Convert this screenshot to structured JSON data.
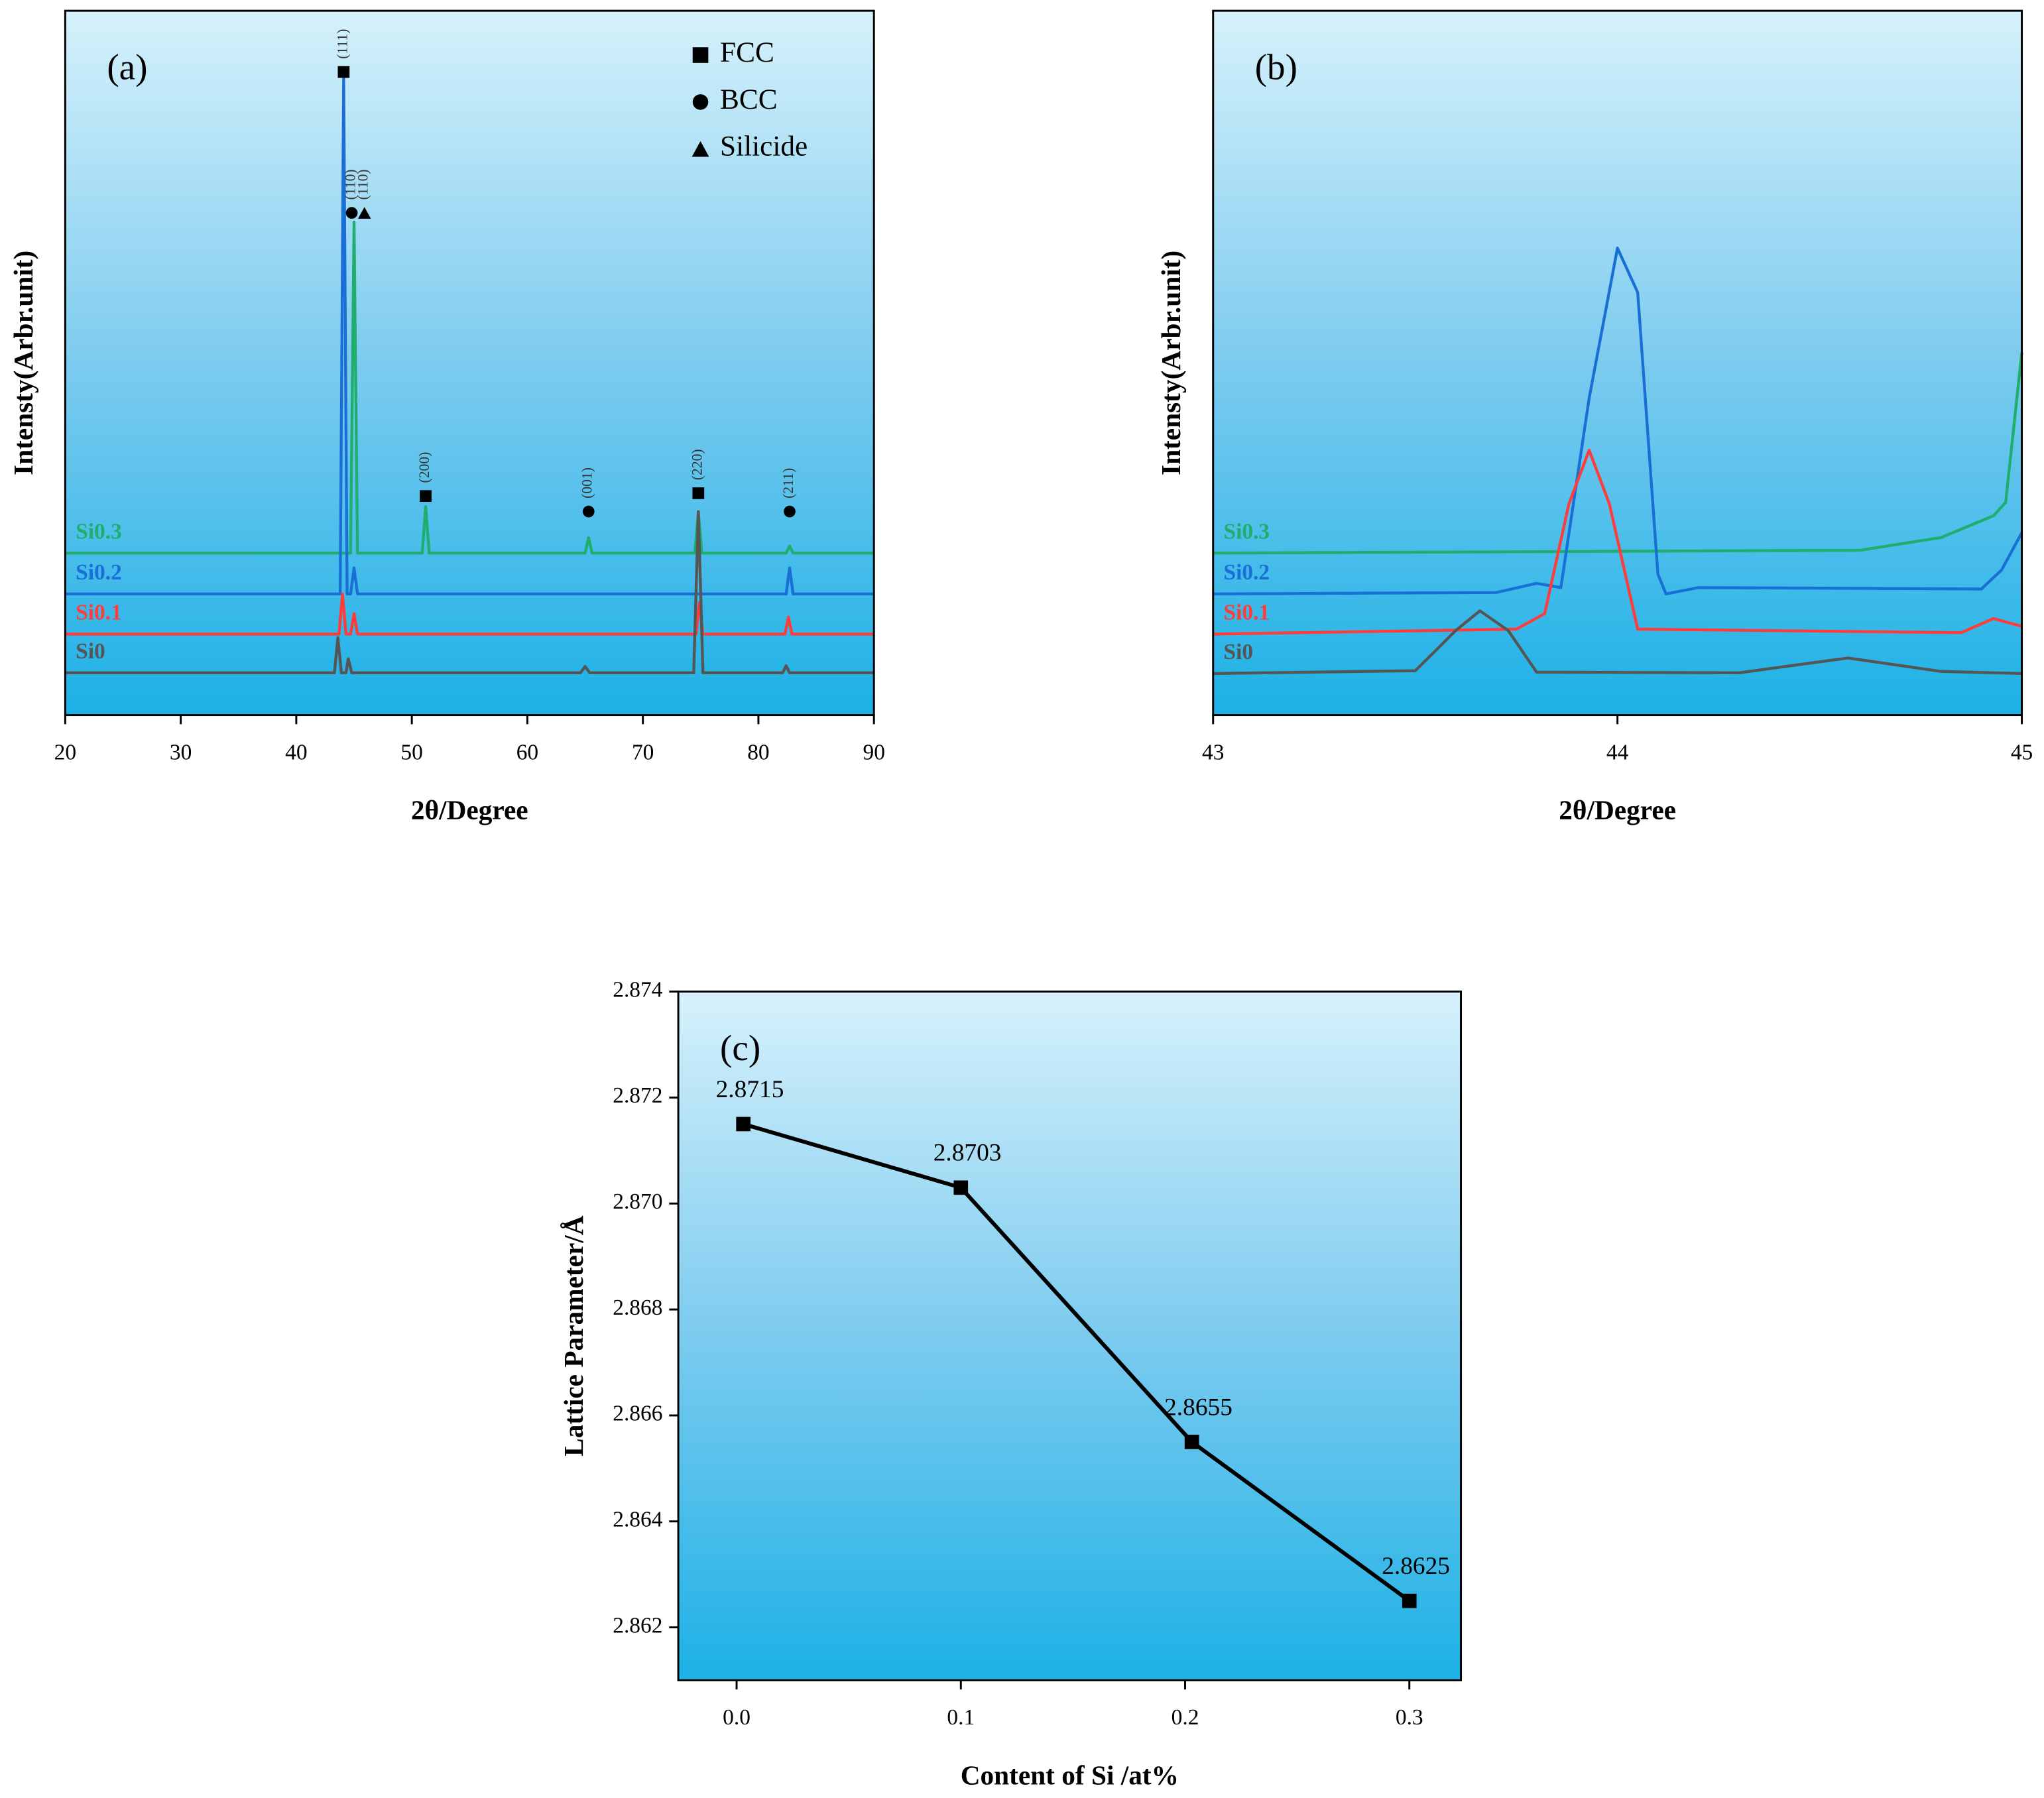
{
  "chart_data": [
    {
      "type": "line",
      "label": "(a)",
      "xlabel": "2θ/Degree",
      "ylabel": "Intensty(Arbr.unit)",
      "xlim": [
        20,
        90
      ],
      "ylim": [
        0,
        100
      ],
      "xticks": [
        20,
        30,
        40,
        50,
        60,
        70,
        80,
        90
      ],
      "series": [
        {
          "name": "Si0.3",
          "color": "#1fae6e",
          "x": [
            20,
            44.7,
            45,
            45.3,
            50.9,
            51.2,
            51.5,
            65,
            65.3,
            65.6,
            74.5,
            74.8,
            75.1,
            82.4,
            82.7,
            83,
            90
          ],
          "values": [
            23,
            23,
            70,
            23,
            23,
            29.6,
            23,
            23,
            25.2,
            23,
            23,
            28.9,
            23,
            23,
            24,
            23,
            23
          ]
        },
        {
          "name": "Si0.2",
          "color": "#1a6fd6",
          "x": [
            20,
            43.8,
            44.1,
            44.4,
            44.7,
            45,
            45.3,
            82.4,
            82.7,
            83,
            90
          ],
          "values": [
            17.2,
            17.2,
            90.4,
            17.2,
            17.2,
            20.9,
            17.2,
            17.2,
            20.9,
            17.2,
            17.2
          ]
        },
        {
          "name": "Si0.1",
          "color": "#ff3b3b",
          "x": [
            20,
            43.7,
            44,
            44.3,
            44.7,
            45,
            45.3,
            74.6,
            74.9,
            75.2,
            82.3,
            82.6,
            82.9,
            90
          ],
          "values": [
            11.5,
            11.5,
            17.2,
            11.5,
            11.5,
            14.4,
            11.5,
            11.5,
            16,
            11.5,
            11.5,
            13.9,
            11.5,
            11.5
          ]
        },
        {
          "name": "Si0",
          "color": "#555555",
          "x": [
            20,
            43.3,
            43.6,
            43.9,
            44.3,
            44.5,
            44.8,
            64.6,
            65,
            65.4,
            74.4,
            74.8,
            75.2,
            82.1,
            82.4,
            82.7,
            90
          ],
          "values": [
            6,
            6,
            11,
            6,
            6,
            8,
            6,
            6,
            6.9,
            6,
            6,
            28.9,
            6,
            6,
            7,
            6,
            6
          ]
        }
      ],
      "annotations": [
        {
          "text": "(111)",
          "x": 44.1,
          "y": 91.3,
          "marker": "square"
        },
        {
          "text": "(110)",
          "x": 44.8,
          "y": 71.3,
          "marker": "circle"
        },
        {
          "text": "(110)",
          "x": 45.9,
          "y": 71.3,
          "marker": "triangle"
        },
        {
          "text": "(200)",
          "x": 51.2,
          "y": 31.1,
          "marker": "square"
        },
        {
          "text": "(001)",
          "x": 65.3,
          "y": 28.9,
          "marker": "circle"
        },
        {
          "text": "(220)",
          "x": 74.8,
          "y": 31.5,
          "marker": "square"
        },
        {
          "text": "(211)",
          "x": 82.7,
          "y": 28.9,
          "marker": "circle"
        }
      ],
      "legend": [
        {
          "label": "FCC",
          "marker": "square"
        },
        {
          "label": "BCC",
          "marker": "circle"
        },
        {
          "label": "Silicide",
          "marker": "triangle"
        }
      ]
    },
    {
      "type": "line",
      "label": "(b)",
      "xlabel": "2θ/Degree",
      "ylabel": "Intensty(Arbr.unit)",
      "xlim": [
        43,
        45
      ],
      "ylim": [
        0,
        100
      ],
      "xticks": [
        43,
        44,
        45
      ],
      "series": [
        {
          "name": "Si0.3",
          "color": "#1fae6e",
          "x": [
            43,
            44.6,
            44.8,
            44.93,
            44.96,
            45
          ],
          "values": [
            23,
            23.4,
            25.2,
            28.3,
            30.2,
            51.5
          ]
        },
        {
          "name": "Si0.2",
          "color": "#1a6fd6",
          "x": [
            43,
            43.7,
            43.8,
            43.86,
            43.93,
            44,
            44.05,
            44.1,
            44.12,
            44.2,
            44.9,
            44.95,
            45
          ],
          "values": [
            17.2,
            17.4,
            18.7,
            18.1,
            45,
            66.3,
            60,
            20,
            17.2,
            18.1,
            17.9,
            20.6,
            25.9
          ]
        },
        {
          "name": "Si0.1",
          "color": "#ff3b3b",
          "x": [
            43,
            43.75,
            43.82,
            43.88,
            43.93,
            43.98,
            44.05,
            44.85,
            44.93,
            45
          ],
          "values": [
            11.5,
            12.2,
            14.4,
            30,
            37.6,
            30,
            12.2,
            11.7,
            13.7,
            12.6
          ]
        },
        {
          "name": "Si0",
          "color": "#555555",
          "x": [
            43,
            43.5,
            43.6,
            43.66,
            43.73,
            43.8,
            44.3,
            44.57,
            44.8,
            45
          ],
          "values": [
            5.9,
            6.3,
            12,
            14.8,
            12,
            6.1,
            6,
            8.1,
            6.2,
            5.9
          ]
        }
      ]
    },
    {
      "type": "line",
      "label": "(c)",
      "xlabel": "Content of Si /at%",
      "ylabel": "Lattice Parameter/Å",
      "xlim": [
        -0.026,
        0.323
      ],
      "ylim": [
        2.861,
        2.874
      ],
      "xticks": [
        {
          "value": 0,
          "label": "0.0"
        },
        0.1,
        0.2,
        0.3
      ],
      "yticks": [
        2.862,
        2.864,
        2.866,
        2.868,
        {
          "value": 2.87,
          "label": "2.870"
        },
        2.872,
        2.874
      ],
      "series": [
        {
          "color": "#000000",
          "marker": "square",
          "x": [
            0.003,
            0.1,
            0.203,
            0.3
          ],
          "values": [
            2.8715,
            2.8703,
            2.8655,
            2.8625
          ],
          "value_labels": [
            "2.8715",
            "2.8703",
            "2.8655",
            "2.8625"
          ]
        }
      ]
    }
  ]
}
